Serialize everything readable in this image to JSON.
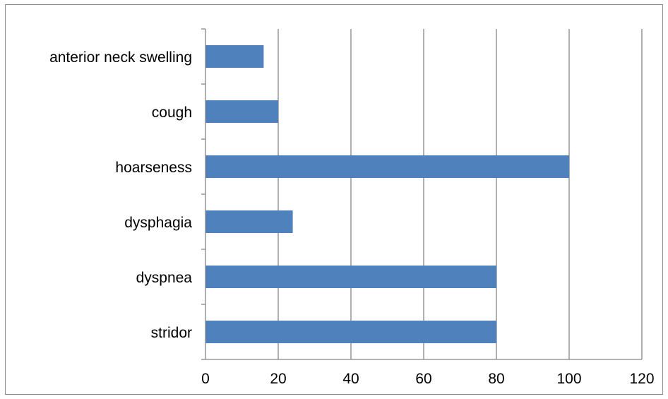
{
  "chart_data": {
    "type": "bar",
    "orientation": "horizontal",
    "categories": [
      "stridor",
      "dyspnea",
      "dysphagia",
      "hoarseness ",
      "cough",
      "anterior neck swelling"
    ],
    "values": [
      80,
      80,
      24,
      100,
      20,
      16
    ],
    "title": "",
    "xlabel": "",
    "ylabel": "",
    "xlim": [
      0,
      120
    ],
    "xticks": [
      "0",
      "20",
      "40",
      "60",
      "80",
      "100",
      "120"
    ],
    "grid": "vertical",
    "legend": "none",
    "colors": {
      "bar": "#4f81bd",
      "grid": "#868686",
      "axis": "#868686",
      "text": "#000000"
    }
  }
}
